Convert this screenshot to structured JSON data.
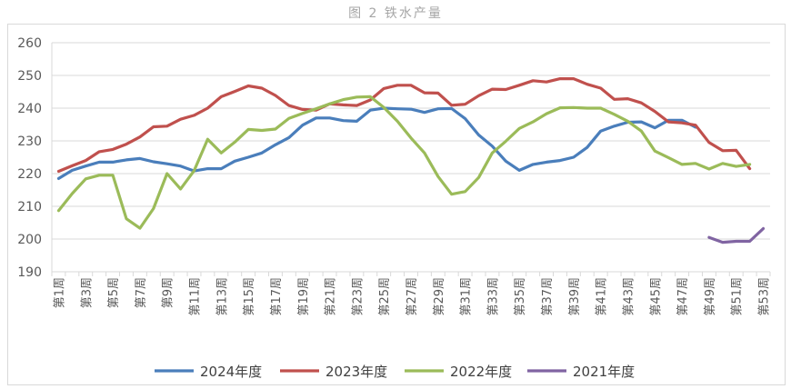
{
  "title": "图 2 铁水产量",
  "chart_data": {
    "type": "line",
    "title": "图 2 铁水产量",
    "ylim": [
      190,
      260
    ],
    "yticks": [
      190,
      200,
      210,
      220,
      230,
      240,
      250,
      260
    ],
    "grid": true,
    "legend_position": "bottom",
    "x_count": 53,
    "xtick_labels": [
      "第1周",
      "第3周",
      "第5周",
      "第7周",
      "第9周",
      "第11周",
      "第13周",
      "第15周",
      "第17周",
      "第19周",
      "第21周",
      "第23周",
      "第25周",
      "第27周",
      "第29周",
      "第31周",
      "第33周",
      "第35周",
      "第37周",
      "第39周",
      "第41周",
      "第43周",
      "第45周",
      "第47周",
      "第49周",
      "第51周",
      "第53周"
    ],
    "series": [
      {
        "name": "2024年度",
        "color": "#4a7ebb",
        "start_week": 1,
        "values": [
          218.5,
          221,
          222.3,
          223.5,
          223.5,
          224.2,
          224.6,
          223.6,
          223,
          222.3,
          220.8,
          221.5,
          221.5,
          223.8,
          225,
          226.3,
          228.8,
          231,
          234.8,
          237,
          237,
          236.2,
          236,
          239.4,
          240,
          239.8,
          239.7,
          238.7,
          239.8,
          239.9,
          236.8,
          231.8,
          228.4,
          223.8,
          221,
          222.8,
          223.5,
          224,
          225,
          228,
          233,
          234.5,
          235.7,
          235.8,
          234,
          236.3,
          236.3,
          234.2
        ]
      },
      {
        "name": "2023年度",
        "color": "#c0504d",
        "start_week": 1,
        "values": [
          220.7,
          222.4,
          224,
          226.7,
          227.4,
          229,
          231.2,
          234.3,
          234.5,
          236.6,
          237.8,
          240,
          243.5,
          245.1,
          246.8,
          246.1,
          243.9,
          240.8,
          239.6,
          239.4,
          241.3,
          241,
          240.8,
          242.5,
          246,
          247,
          247,
          244.7,
          244.6,
          240.9,
          241.2,
          243.8,
          245.8,
          245.7,
          247,
          248.4,
          248,
          249,
          249,
          247.3,
          246.1,
          242.7,
          242.9,
          241.6,
          239,
          235.8,
          235.5,
          234.8,
          229.5,
          227,
          227.1,
          221.5
        ]
      },
      {
        "name": "2022年度",
        "color": "#9bbb59",
        "start_week": 1,
        "values": [
          208.7,
          213.9,
          218.4,
          219.5,
          219.5,
          206.2,
          203.3,
          209.3,
          220,
          215.3,
          220.9,
          230.5,
          226.3,
          229.6,
          233.5,
          233.2,
          233.6,
          236.9,
          238.4,
          239.8,
          241.3,
          242.6,
          243.4,
          243.5,
          240.2,
          236,
          230.9,
          226.3,
          219.1,
          213.7,
          214.5,
          218.8,
          226.3,
          229.9,
          233.8,
          235.8,
          238.3,
          240.1,
          240.2,
          240,
          240,
          238.1,
          236,
          233,
          226.9,
          224.9,
          222.8,
          223.1,
          221.4,
          223.1,
          222.2,
          222.8
        ]
      },
      {
        "name": "2021年度",
        "color": "#8064a2",
        "start_week": 49,
        "values": [
          200.5,
          199,
          199.3,
          199.3,
          203.2
        ]
      }
    ]
  }
}
